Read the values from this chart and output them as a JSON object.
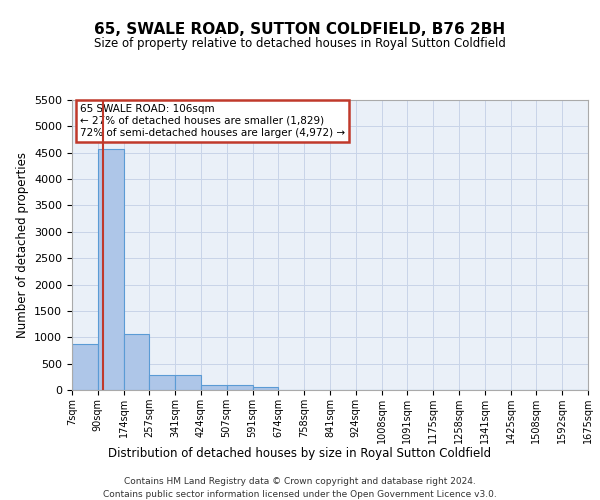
{
  "title": "65, SWALE ROAD, SUTTON COLDFIELD, B76 2BH",
  "subtitle": "Size of property relative to detached houses in Royal Sutton Coldfield",
  "xlabel": "Distribution of detached houses by size in Royal Sutton Coldfield",
  "ylabel": "Number of detached properties",
  "footer_line1": "Contains HM Land Registry data © Crown copyright and database right 2024.",
  "footer_line2": "Contains public sector information licensed under the Open Government Licence v3.0.",
  "annotation_line1": "65 SWALE ROAD: 106sqm",
  "annotation_line2": "← 27% of detached houses are smaller (1,829)",
  "annotation_line3": "72% of semi-detached houses are larger (4,972) →",
  "property_size": 106,
  "bar_edges": [
    7,
    90,
    174,
    257,
    341,
    424,
    507,
    591,
    674,
    758,
    841,
    924,
    1008,
    1091,
    1175,
    1258,
    1341,
    1425,
    1508,
    1592,
    1675
  ],
  "bar_values": [
    880,
    4570,
    1060,
    290,
    290,
    90,
    90,
    50,
    0,
    0,
    0,
    0,
    0,
    0,
    0,
    0,
    0,
    0,
    0,
    0
  ],
  "bar_color": "#aec6e8",
  "bar_edge_color": "#5b9bd5",
  "vline_color": "#c0392b",
  "vline_x": 106,
  "annotation_box_color": "#c0392b",
  "bg_color": "#eaf0f8",
  "grid_color": "#c8d4e8",
  "ylim": [
    0,
    5500
  ],
  "yticks": [
    0,
    500,
    1000,
    1500,
    2000,
    2500,
    3000,
    3500,
    4000,
    4500,
    5000,
    5500
  ],
  "tick_labels": [
    "7sqm",
    "90sqm",
    "174sqm",
    "257sqm",
    "341sqm",
    "424sqm",
    "507sqm",
    "591sqm",
    "674sqm",
    "758sqm",
    "841sqm",
    "924sqm",
    "1008sqm",
    "1091sqm",
    "1175sqm",
    "1258sqm",
    "1341sqm",
    "1425sqm",
    "1508sqm",
    "1592sqm",
    "1675sqm"
  ]
}
